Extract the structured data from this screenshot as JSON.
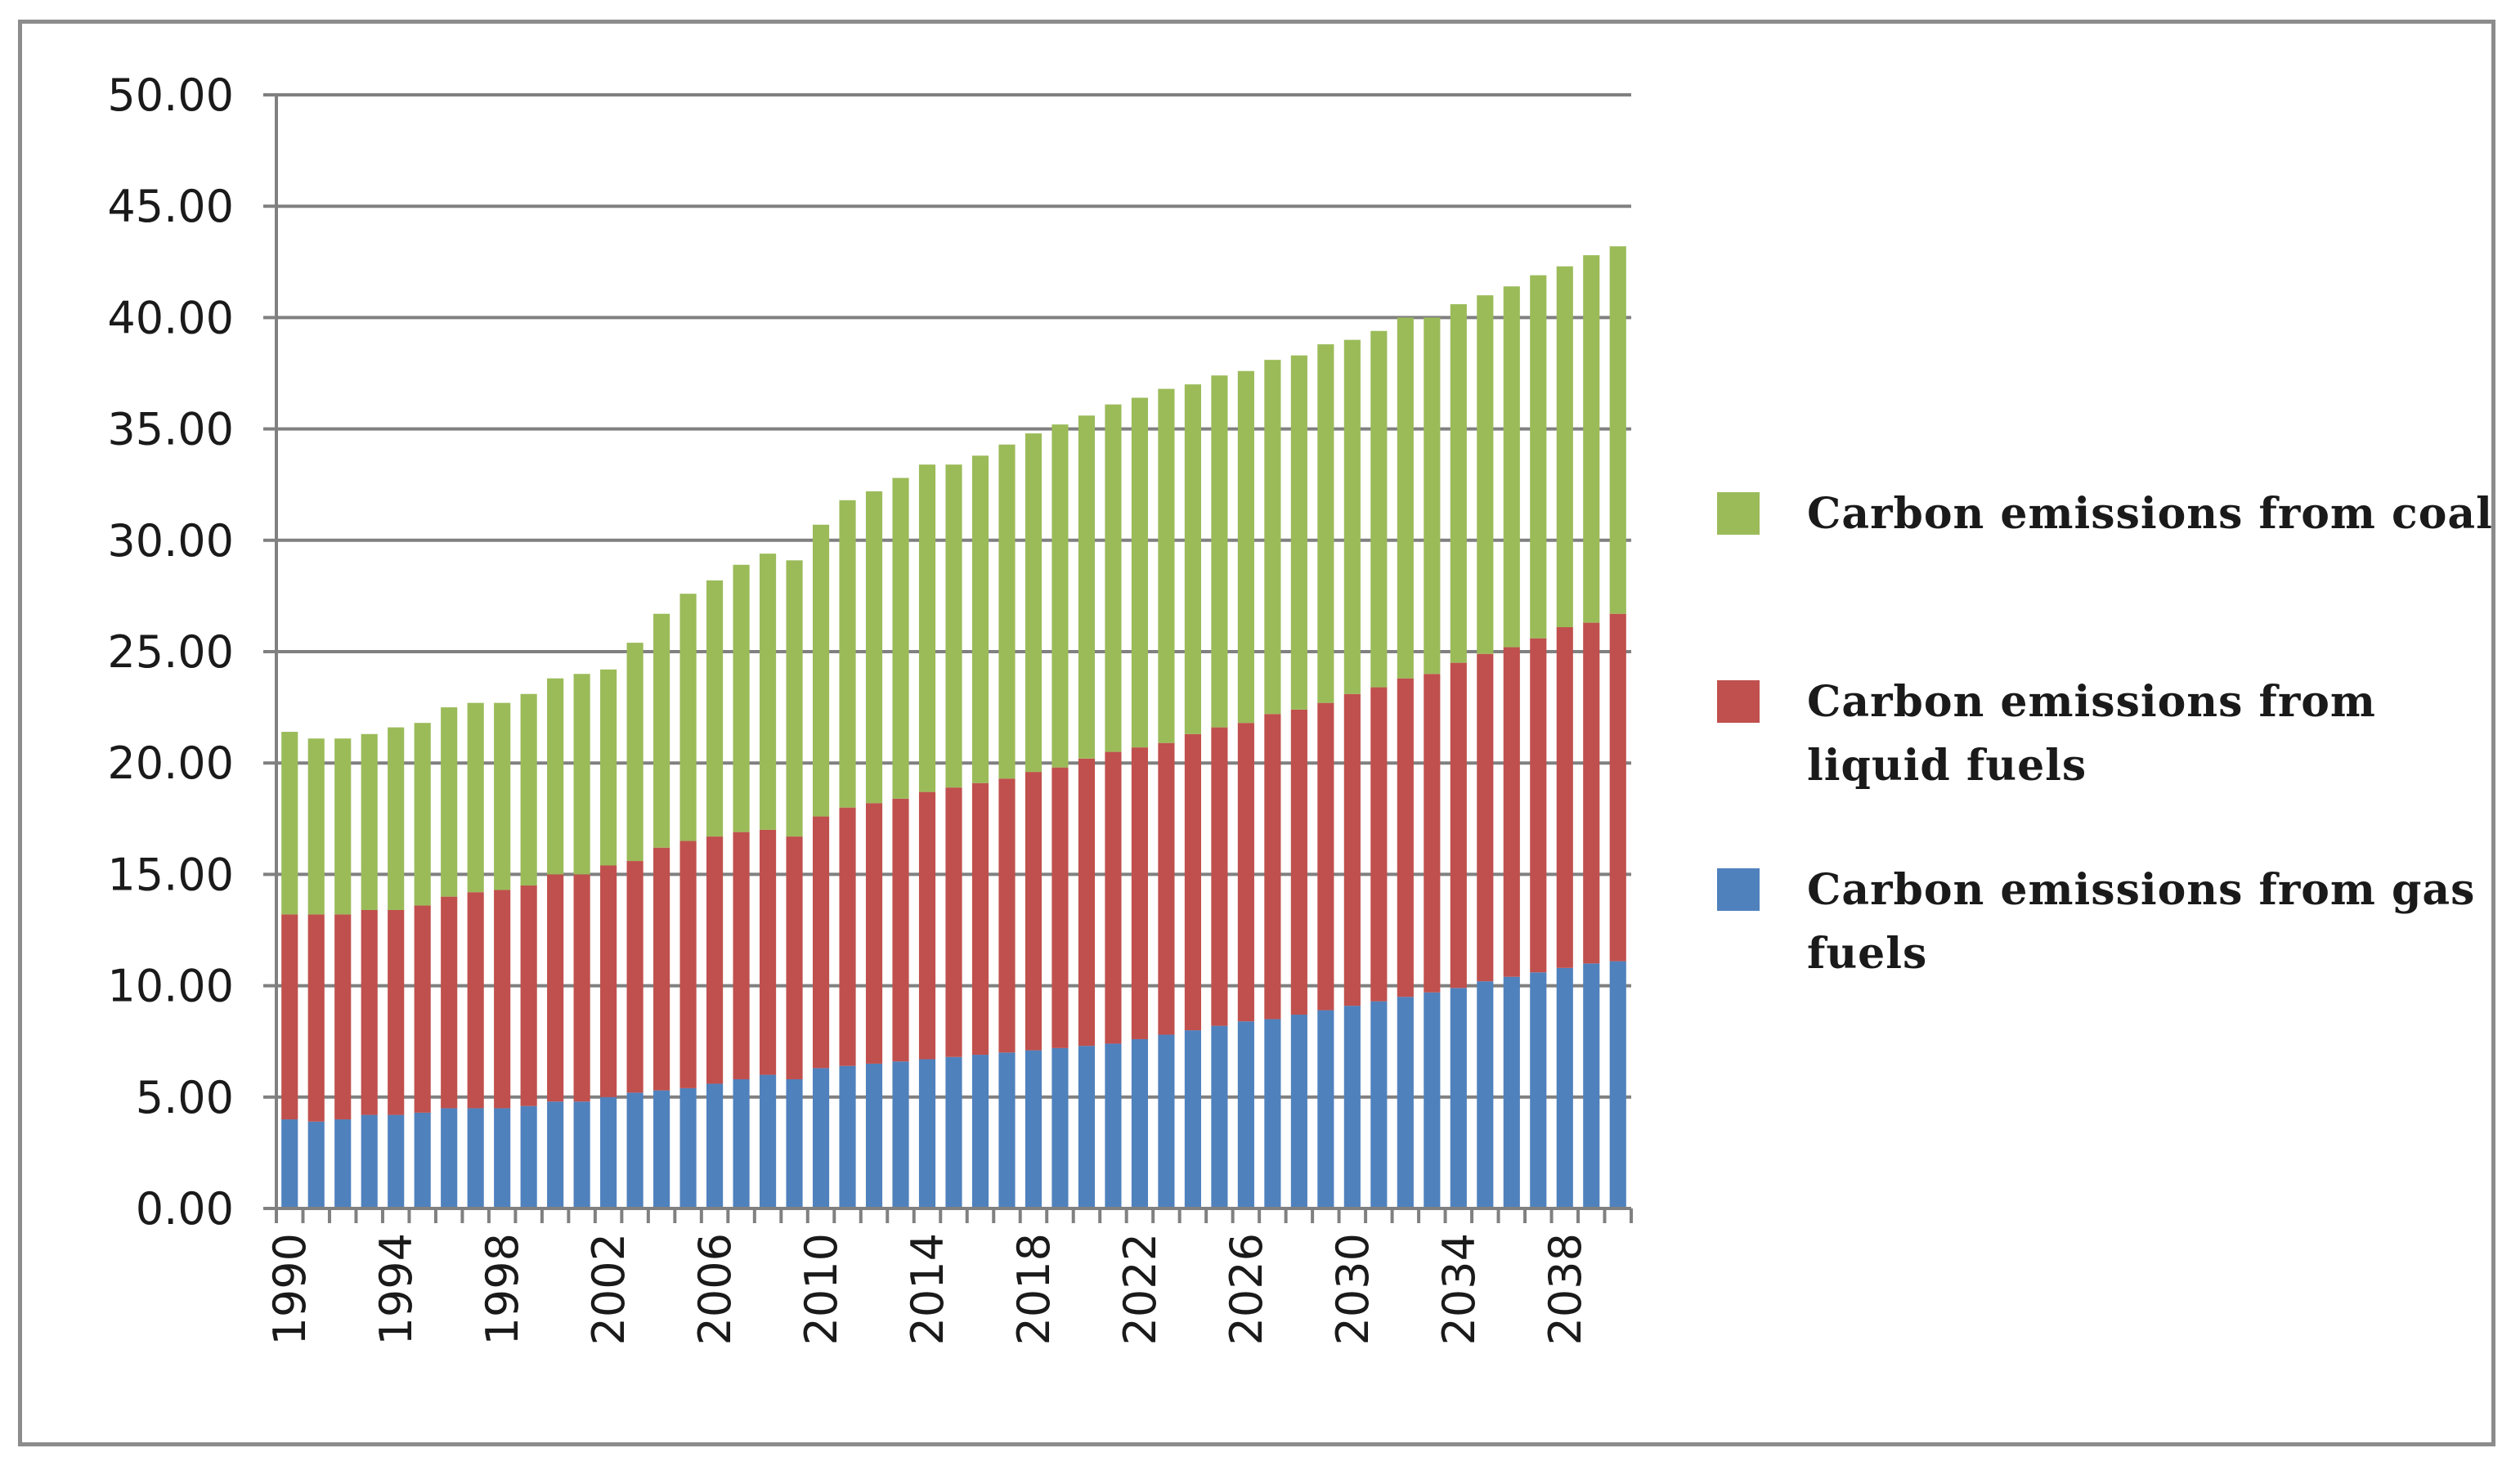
{
  "chart_data": {
    "type": "bar",
    "stacked": true,
    "title": "",
    "xlabel": "",
    "ylabel": "",
    "ylim": [
      0,
      50
    ],
    "y_ticks": [
      "0.00",
      "5.00",
      "10.00",
      "15.00",
      "20.00",
      "25.00",
      "30.00",
      "35.00",
      "40.00",
      "45.00",
      "50.00"
    ],
    "x_tick_labels": [
      "1990",
      "1994",
      "1998",
      "2002",
      "2006",
      "2010",
      "2014",
      "2018",
      "2022",
      "2026",
      "2030",
      "2034",
      "2038"
    ],
    "categories": [
      "1990",
      "1991",
      "1992",
      "1993",
      "1994",
      "1995",
      "1996",
      "1997",
      "1998",
      "1999",
      "2000",
      "2001",
      "2002",
      "2003",
      "2004",
      "2005",
      "2006",
      "2007",
      "2008",
      "2009",
      "2010",
      "2011",
      "2012",
      "2013",
      "2014",
      "2015",
      "2016",
      "2017",
      "2018",
      "2019",
      "2020",
      "2021",
      "2022",
      "2023",
      "2024",
      "2025",
      "2026",
      "2027",
      "2028",
      "2029",
      "2030",
      "2031",
      "2032",
      "2033",
      "2034",
      "2035",
      "2036",
      "2037",
      "2038",
      "2039",
      "2040"
    ],
    "series": [
      {
        "name": "Carbon emissions from gas fuels",
        "color": "#4f81bd",
        "values": [
          4.0,
          3.9,
          4.0,
          4.2,
          4.2,
          4.3,
          4.5,
          4.5,
          4.5,
          4.6,
          4.8,
          4.8,
          5.0,
          5.2,
          5.3,
          5.4,
          5.6,
          5.8,
          6.0,
          5.8,
          6.3,
          6.4,
          6.5,
          6.6,
          6.7,
          6.8,
          6.9,
          7.0,
          7.1,
          7.2,
          7.3,
          7.4,
          7.6,
          7.8,
          8.0,
          8.2,
          8.4,
          8.5,
          8.7,
          8.9,
          9.1,
          9.3,
          9.5,
          9.7,
          9.9,
          10.2,
          10.4,
          10.6,
          10.8,
          11.0,
          11.1
        ]
      },
      {
        "name": "Carbon emissions from liquid fuels",
        "color": "#c0504d",
        "values": [
          9.2,
          9.3,
          9.2,
          9.2,
          9.2,
          9.3,
          9.5,
          9.7,
          9.8,
          9.9,
          10.2,
          10.2,
          10.4,
          10.4,
          10.9,
          11.1,
          11.1,
          11.1,
          11.0,
          10.9,
          11.3,
          11.6,
          11.7,
          11.8,
          12.0,
          12.1,
          12.2,
          12.3,
          12.5,
          12.6,
          12.9,
          13.1,
          13.1,
          13.1,
          13.3,
          13.4,
          13.4,
          13.7,
          13.7,
          13.8,
          14.0,
          14.1,
          14.3,
          14.3,
          14.6,
          14.7,
          14.8,
          15.0,
          15.3,
          15.3,
          15.6
        ]
      },
      {
        "name": "Carbon emissions from coal",
        "color": "#9bbb59",
        "values": [
          8.2,
          7.9,
          7.9,
          7.9,
          8.2,
          8.2,
          8.5,
          8.5,
          8.4,
          8.6,
          8.8,
          9.0,
          8.8,
          9.8,
          10.5,
          11.1,
          11.5,
          12.0,
          12.4,
          12.4,
          13.1,
          13.8,
          14.0,
          14.4,
          14.7,
          14.5,
          14.7,
          15.0,
          15.2,
          15.4,
          15.4,
          15.6,
          15.7,
          15.9,
          15.7,
          15.8,
          15.8,
          15.9,
          15.9,
          16.1,
          15.9,
          16.0,
          16.2,
          16.0,
          16.1,
          16.1,
          16.2,
          16.3,
          16.2,
          16.5,
          16.5
        ]
      }
    ]
  },
  "legend": [
    {
      "label": "Carbon emissions from coal",
      "color": "#9bbb59"
    },
    {
      "label": "Carbon emissions from liquid fuels",
      "color": "#c0504d"
    },
    {
      "label": "Carbon emissions from gas fuels",
      "color": "#4f81bd"
    }
  ]
}
